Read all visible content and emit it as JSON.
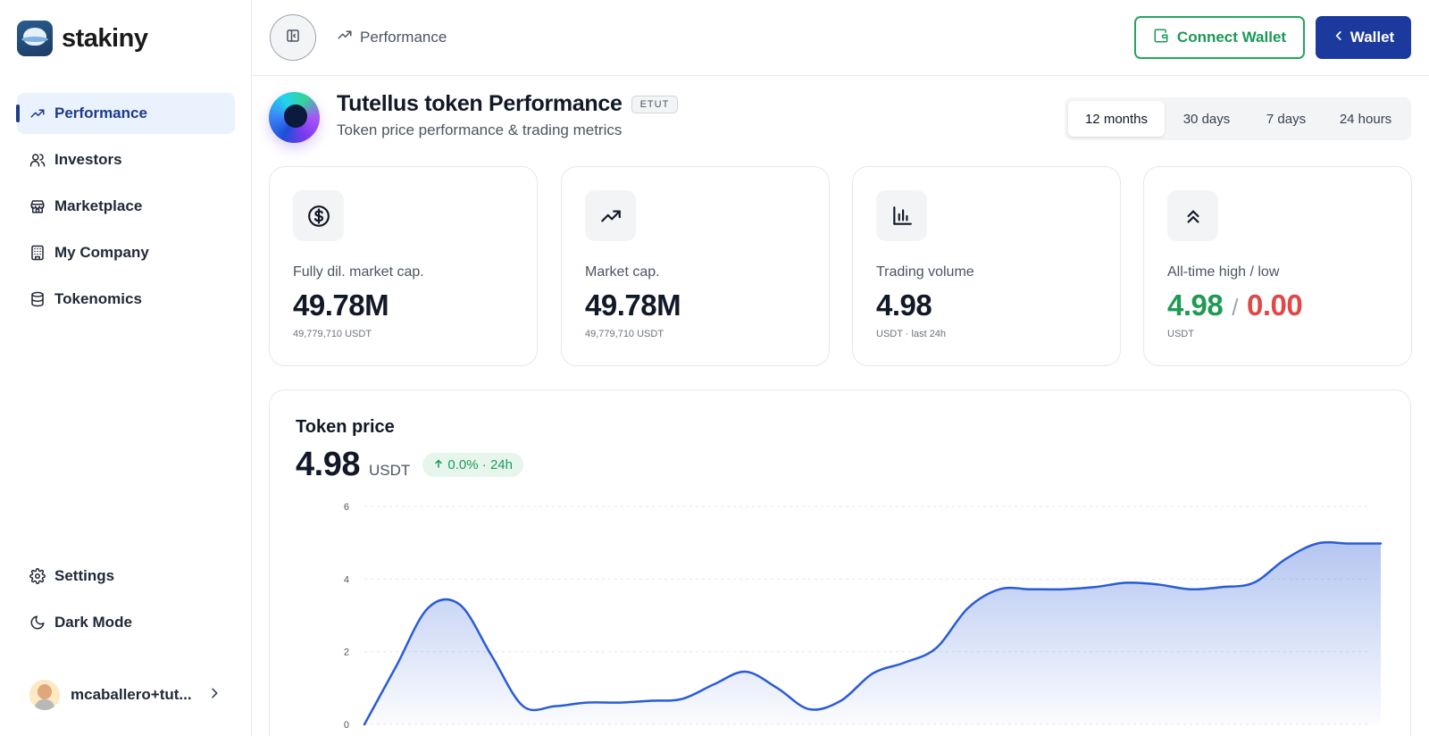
{
  "brand": {
    "name": "stakiny"
  },
  "sidebar": {
    "items": [
      {
        "label": "Performance",
        "icon": "trending-up-icon",
        "active": true
      },
      {
        "label": "Investors",
        "icon": "users-icon",
        "active": false
      },
      {
        "label": "Marketplace",
        "icon": "store-icon",
        "active": false
      },
      {
        "label": "My Company",
        "icon": "building-icon",
        "active": false
      },
      {
        "label": "Tokenomics",
        "icon": "database-icon",
        "active": false
      }
    ],
    "bottom_items": [
      {
        "label": "Settings",
        "icon": "gear-icon"
      },
      {
        "label": "Dark Mode",
        "icon": "moon-icon"
      }
    ],
    "user": {
      "name": "mcaballero+tut..."
    }
  },
  "header": {
    "breadcrumb": "Performance",
    "connect_wallet": "Connect Wallet",
    "wallet": "Wallet"
  },
  "token": {
    "name": "Tutellus token Performance",
    "symbol": "ETUT",
    "subtitle": "Token price performance & trading metrics"
  },
  "ranges": {
    "items": [
      "12 months",
      "30 days",
      "7 days",
      "24 hours"
    ],
    "selected": "12 months"
  },
  "stats": [
    {
      "label": "Fully dil. market cap.",
      "value": "49.78M",
      "sub": "49,779,710 USDT",
      "icon": "dollar-circle-icon"
    },
    {
      "label": "Market cap.",
      "value": "49.78M",
      "sub": "49,779,710 USDT",
      "icon": "trending-up-icon"
    },
    {
      "label": "Trading volume",
      "value": "4.98",
      "sub": "USDT · last 24h",
      "icon": "bar-chart-icon"
    },
    {
      "label": "All-time high / low",
      "high": "4.98",
      "separator": "/",
      "low": "0.00",
      "sub": "USDT",
      "icon": "chevrons-up-icon"
    }
  ],
  "price_card": {
    "title": "Token price",
    "value": "4.98",
    "unit": "USDT",
    "change": "0.0% · 24h"
  },
  "colors": {
    "accent": "#1c3a9e",
    "positive": "#1f9a55",
    "negative": "#e04848",
    "line": "#2a5bd7"
  },
  "chart_data": {
    "type": "area",
    "title": "Token price",
    "xlabel": "",
    "ylabel": "",
    "ylim": [
      0,
      6
    ],
    "yticks": [
      0,
      2,
      4,
      6
    ],
    "grid": true,
    "series": [
      {
        "values": [
          0.0,
          1.6,
          3.2,
          3.3,
          1.9,
          0.5,
          0.5,
          0.6,
          0.6,
          0.65,
          0.7,
          1.1,
          1.45,
          1.0,
          0.42,
          0.65,
          1.4,
          1.7,
          2.1,
          3.2,
          3.72,
          3.72,
          3.72,
          3.78,
          3.9,
          3.85,
          3.72,
          3.78,
          3.9,
          4.55,
          4.98,
          4.98,
          4.98
        ]
      }
    ]
  }
}
